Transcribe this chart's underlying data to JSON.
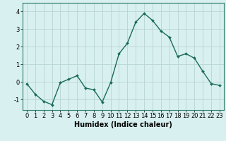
{
  "x": [
    0,
    1,
    2,
    3,
    4,
    5,
    6,
    7,
    8,
    9,
    10,
    11,
    12,
    13,
    14,
    15,
    16,
    17,
    18,
    19,
    20,
    21,
    22,
    23
  ],
  "y": [
    -0.1,
    -0.7,
    -1.1,
    -1.3,
    -0.05,
    0.15,
    0.35,
    -0.35,
    -0.45,
    -1.15,
    -0.05,
    1.6,
    2.2,
    3.4,
    3.9,
    3.5,
    2.9,
    2.55,
    1.45,
    1.6,
    1.35,
    0.6,
    -0.1,
    -0.2
  ],
  "line_color": "#1a6b5a",
  "marker": "D",
  "marker_size": 2.0,
  "line_width": 1.0,
  "xlabel": "Humidex (Indice chaleur)",
  "xlabel_fontsize": 7,
  "yticks": [
    -1,
    0,
    1,
    2,
    3,
    4
  ],
  "xticks": [
    0,
    1,
    2,
    3,
    4,
    5,
    6,
    7,
    8,
    9,
    10,
    11,
    12,
    13,
    14,
    15,
    16,
    17,
    18,
    19,
    20,
    21,
    22,
    23
  ],
  "xlim": [
    -0.5,
    23.5
  ],
  "ylim": [
    -1.6,
    4.5
  ],
  "bg_color": "#d8f0f0",
  "grid_color": "#b8d4d4",
  "tick_label_fontsize": 6,
  "spine_color": "#2a7a6a",
  "fig_width": 3.2,
  "fig_height": 2.0,
  "dpi": 100
}
